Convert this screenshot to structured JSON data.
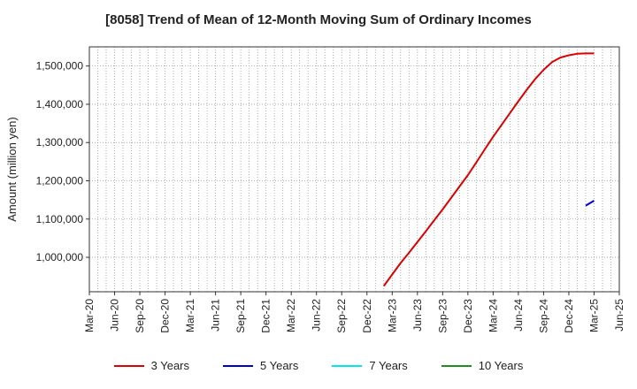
{
  "chart_data": {
    "type": "line",
    "title": "[8058]  Trend of Mean of 12-Month Moving Sum of Ordinary Incomes",
    "ylabel": "Amount (million yen)",
    "xlabel": "",
    "x_ticks": [
      "Mar-20",
      "Jun-20",
      "Sep-20",
      "Dec-20",
      "Mar-21",
      "Jun-21",
      "Sep-21",
      "Dec-21",
      "Mar-22",
      "Jun-22",
      "Sep-22",
      "Dec-22",
      "Mar-23",
      "Jun-23",
      "Sep-23",
      "Dec-23",
      "Mar-24",
      "Jun-24",
      "Sep-24",
      "Dec-24",
      "Mar-25",
      "Jun-25"
    ],
    "y_ticks": [
      1000000,
      1100000,
      1200000,
      1300000,
      1400000,
      1500000
    ],
    "y_tick_labels": [
      "1,000,000",
      "1,100,000",
      "1,200,000",
      "1,300,000",
      "1,400,000",
      "1,500,000"
    ],
    "ylim": [
      910000,
      1550000
    ],
    "grid": true,
    "legend_position": "bottom",
    "series": [
      {
        "name": "3 Years",
        "color": "#dd0000",
        "x": [
          "Feb-23",
          "Mar-23",
          "Apr-23",
          "May-23",
          "Jun-23",
          "Jul-23",
          "Aug-23",
          "Sep-23",
          "Oct-23",
          "Nov-23",
          "Dec-23",
          "Jan-24",
          "Feb-24",
          "Mar-24",
          "Apr-24",
          "May-24",
          "Jun-24",
          "Jul-24",
          "Aug-24",
          "Sep-24",
          "Oct-24",
          "Nov-24",
          "Dec-24",
          "Jan-25",
          "Feb-25",
          "Mar-25"
        ],
        "values": [
          925000,
          955000,
          985000,
          1012000,
          1040000,
          1068000,
          1097000,
          1125000,
          1155000,
          1185000,
          1215000,
          1248000,
          1282000,
          1315000,
          1346000,
          1377000,
          1408000,
          1438000,
          1466000,
          1490000,
          1510000,
          1522000,
          1528000,
          1532000,
          1533000,
          1533000
        ]
      },
      {
        "name": "5 Years",
        "color": "#0000cc",
        "x": [
          "Feb-25",
          "Mar-25"
        ],
        "values": [
          1135000,
          1148000
        ]
      },
      {
        "name": "7 Years",
        "color": "#00e5ee",
        "x": [],
        "values": []
      },
      {
        "name": "10 Years",
        "color": "#228b22",
        "x": [],
        "values": []
      }
    ]
  }
}
